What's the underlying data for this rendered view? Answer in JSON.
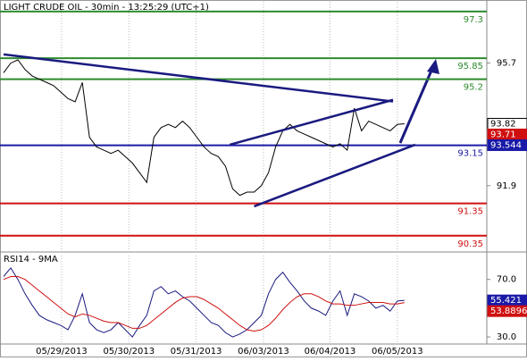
{
  "chart_data": [
    {
      "type": "line",
      "title": "LIGHT CRUDE OIL - 30min - 13:25:29 (UTC+1)",
      "xlim": [
        -0.5,
        67.5
      ],
      "ylim": [
        89.9,
        97.6
      ],
      "yticks": [
        95.7,
        91.9
      ],
      "xticks": [
        {
          "value": 8.1,
          "label": "05/29/2013"
        },
        {
          "value": 17.5,
          "label": "05/30/2013"
        },
        {
          "value": 26.9,
          "label": "05/31/2013"
        },
        {
          "value": 36.3,
          "label": "06/03/2013"
        },
        {
          "value": 45.6,
          "label": "06/04/2013"
        },
        {
          "value": 55,
          "label": "06/05/2013"
        }
      ],
      "series": [
        {
          "color": "#000000",
          "values": [
            95.4,
            95.7,
            95.8,
            95.5,
            95.3,
            95.2,
            95.1,
            95.0,
            94.8,
            94.6,
            94.5,
            95.1,
            93.4,
            93.1,
            93.0,
            92.9,
            93.0,
            92.8,
            92.6,
            92.3,
            92.0,
            93.4,
            93.7,
            93.8,
            93.7,
            93.9,
            93.7,
            93.4,
            93.1,
            92.9,
            92.8,
            92.5,
            91.8,
            91.6,
            91.7,
            91.7,
            91.9,
            92.3,
            93.1,
            93.6,
            93.8,
            93.6,
            93.5,
            93.4,
            93.3,
            93.2,
            93.1,
            93.2,
            93.0,
            94.3,
            93.6,
            93.9,
            93.8,
            93.7,
            93.6,
            93.8,
            93.82
          ]
        }
      ],
      "levels": [
        {
          "value": 97.3,
          "color": "#2e8b2e"
        },
        {
          "value": 95.85,
          "color": "#2e8b2e"
        },
        {
          "value": 95.2,
          "color": "#2e8b2e"
        },
        {
          "value": 93.15,
          "color": "#1a1aa8"
        },
        {
          "value": 91.35,
          "color": "#d01010"
        },
        {
          "value": 90.35,
          "color": "#d01010"
        }
      ],
      "trendlines": [
        {
          "x": [
            0,
            54.4
          ],
          "y": [
            95.97,
            94.51
          ]
        },
        {
          "x": [
            31.6,
            54.4
          ],
          "y": [
            93.17,
            94.56
          ]
        },
        {
          "x": [
            35,
            57.5
          ],
          "y": [
            91.26,
            93.17
          ]
        }
      ],
      "markers": [
        {
          "value": 93.82,
          "color": "#000000"
        },
        {
          "value": 93.71,
          "color": "#d01010"
        },
        {
          "value": 93.544,
          "color": "#1a1aa8"
        }
      ]
    },
    {
      "type": "line",
      "title": "RSI14 - 9MA",
      "xlim": [
        -0.5,
        67.5
      ],
      "ylim": [
        25.7,
        86.6
      ],
      "yticks": [
        {
          "value": 70,
          "label": "70.0"
        },
        {
          "value": 30,
          "label": "30.0"
        }
      ],
      "series": [
        {
          "color": "#1a1a80",
          "values": [
            72,
            78,
            70,
            60,
            52,
            45,
            42,
            40,
            38,
            35,
            45,
            60,
            40,
            35,
            33,
            35,
            40,
            35,
            30,
            38,
            45,
            62,
            65,
            60,
            62,
            58,
            55,
            50,
            45,
            40,
            38,
            33,
            30,
            32,
            35,
            40,
            45,
            60,
            70,
            75,
            68,
            62,
            55,
            50,
            48,
            45,
            55,
            62,
            45,
            60,
            58,
            55,
            50,
            52,
            48,
            55,
            55.421
          ]
        },
        {
          "color": "#d01010",
          "values": [
            70,
            72,
            72,
            70,
            66,
            62,
            58,
            54,
            50,
            46,
            44,
            46,
            45,
            43,
            41,
            40,
            40,
            38,
            36,
            36,
            38,
            42,
            46,
            50,
            54,
            57,
            58,
            58,
            56,
            53,
            50,
            46,
            42,
            38,
            35,
            34,
            35,
            38,
            43,
            49,
            54,
            58,
            60,
            60,
            58,
            55,
            53,
            53,
            52,
            52,
            53,
            54,
            54,
            54,
            53,
            53,
            53.8896
          ]
        }
      ],
      "markers": [
        {
          "value": 55.421,
          "color": "#1a1aa8"
        },
        {
          "value": 53.8896,
          "color": "#d01010"
        }
      ]
    }
  ]
}
